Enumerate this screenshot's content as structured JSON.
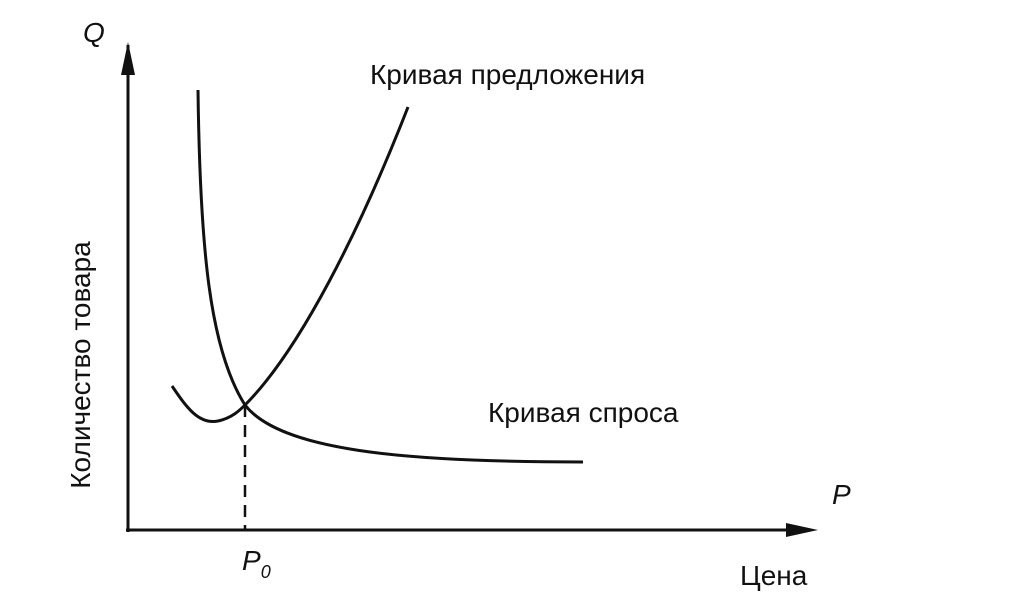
{
  "axes": {
    "y_symbol": "Q",
    "y_label": "Количество товара",
    "x_symbol": "P",
    "x_label": "Цена"
  },
  "curves": [
    {
      "label": "Кривая предложения"
    },
    {
      "label": "Кривая спроса"
    }
  ],
  "equilibrium": {
    "symbol": "P",
    "subscript": "0"
  }
}
